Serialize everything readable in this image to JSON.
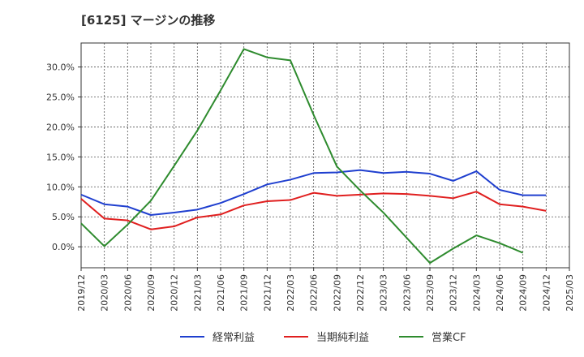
{
  "chart_data": {
    "type": "line",
    "title": "[6125]  マージンの推移",
    "x": [
      "2019/12",
      "2020/03",
      "2020/06",
      "2020/09",
      "2020/12",
      "2021/03",
      "2021/06",
      "2021/09",
      "2021/12",
      "2022/03",
      "2022/06",
      "2022/09",
      "2022/12",
      "2023/03",
      "2023/06",
      "2023/09",
      "2023/12",
      "2024/03",
      "2024/06",
      "2024/09",
      "2024/12",
      "2025/03"
    ],
    "y_ticks": [
      "0.0%",
      "5.0%",
      "10.0%",
      "15.0%",
      "20.0%",
      "25.0%",
      "30.0%"
    ],
    "ylim": [
      -3.5,
      34
    ],
    "grid": true,
    "legend_position": "bottom",
    "series": [
      {
        "name": "経常利益",
        "color": "#1f3fcf",
        "values": [
          8.7,
          7.1,
          6.7,
          5.3,
          5.7,
          6.2,
          7.3,
          8.8,
          10.4,
          11.2,
          12.3,
          12.4,
          12.8,
          12.3,
          12.5,
          12.2,
          11.0,
          12.6,
          9.5,
          8.6,
          8.6,
          null
        ]
      },
      {
        "name": "当期純利益",
        "color": "#e01f1f",
        "values": [
          8.0,
          4.7,
          4.4,
          2.9,
          3.4,
          4.9,
          5.4,
          6.9,
          7.6,
          7.8,
          9.0,
          8.5,
          8.7,
          8.9,
          8.8,
          8.5,
          8.1,
          9.2,
          7.1,
          6.7,
          6.0,
          null
        ]
      },
      {
        "name": "営業CF",
        "color": "#2e8b2e",
        "values": [
          3.9,
          0.1,
          3.7,
          7.7,
          13.5,
          19.4,
          26.1,
          33.0,
          31.6,
          31.1,
          22.0,
          13.4,
          9.4,
          5.7,
          1.5,
          -2.7,
          -0.3,
          1.9,
          0.6,
          -1.0,
          null,
          null
        ]
      }
    ]
  }
}
